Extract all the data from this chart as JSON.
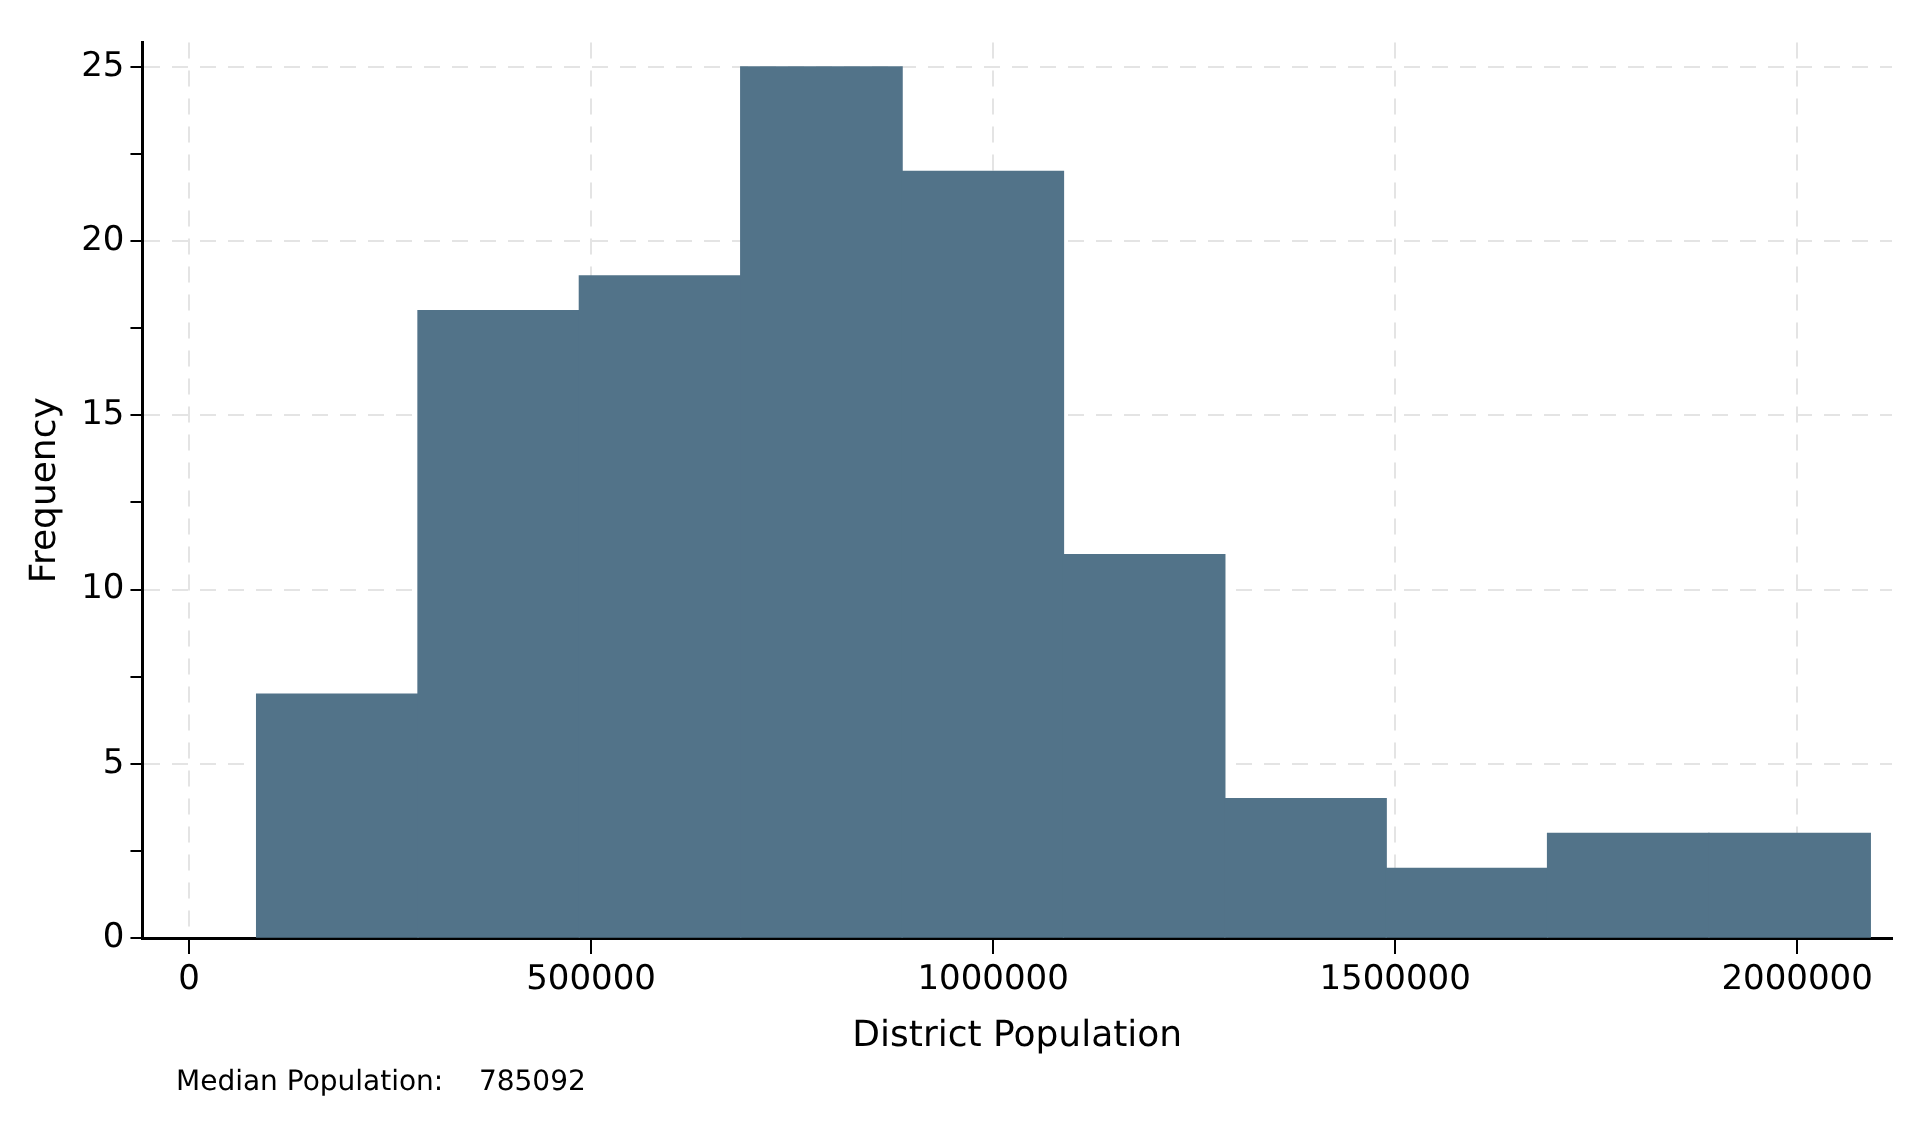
{
  "chart_data": {
    "type": "histogram",
    "xlabel": "District Population",
    "ylabel": "Frequency",
    "bins": [
      84000,
      284700,
      485400,
      686100,
      886800,
      1087500,
      1288200,
      1488900,
      1689600,
      1890300,
      2091000
    ],
    "values": [
      7,
      18,
      19,
      25,
      22,
      11,
      4,
      2,
      3,
      3
    ],
    "color": "#527389",
    "xlim": [
      -58000,
      2118000
    ],
    "xticks": [
      0,
      500000,
      1000000,
      1500000,
      2000000
    ],
    "ylim": [
      0,
      25.7
    ],
    "yticks": [
      0,
      {
        "value": 2.5,
        "label": null
      },
      5,
      {
        "value": 7.5,
        "label": null
      },
      10,
      {
        "value": 12.5,
        "label": null
      },
      15,
      {
        "value": 17.5,
        "label": null
      },
      20,
      {
        "value": 22.5,
        "label": null
      },
      25
    ],
    "grid": true,
    "legend": false,
    "annotations": [
      "Median Population:    785092"
    ]
  }
}
